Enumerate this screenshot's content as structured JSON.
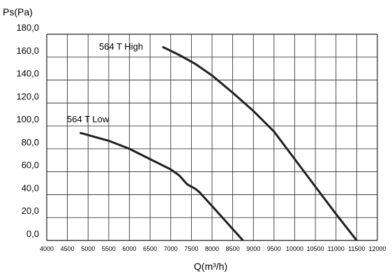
{
  "chart_data": {
    "type": "line",
    "title": "",
    "xlabel": "Q(m³/h)",
    "ylabel": "Ps(Pa)",
    "xlim": [
      4000,
      12000
    ],
    "ylim": [
      0,
      180
    ],
    "grid": true,
    "x_ticks": [
      "4000",
      "4500",
      "5000",
      "5500",
      "6000",
      "6500",
      "7000",
      "7500",
      "8000",
      "8500",
      "9000",
      "9500",
      "10000",
      "10500",
      "11000",
      "11500",
      "12000"
    ],
    "y_ticks": [
      "0,0",
      "20,0",
      "40,0",
      "60,0",
      "80,0",
      "100,0",
      "120,0",
      "140,0",
      "160,0",
      "180,0"
    ],
    "series": [
      {
        "name": "564 T High",
        "color": "#231f20",
        "points": [
          [
            6800,
            169
          ],
          [
            7200,
            162
          ],
          [
            7600,
            154
          ],
          [
            8000,
            144
          ],
          [
            8500,
            129
          ],
          [
            9000,
            113
          ],
          [
            9500,
            95
          ],
          [
            10000,
            71
          ],
          [
            10500,
            47
          ],
          [
            11000,
            23
          ],
          [
            11500,
            0
          ]
        ]
      },
      {
        "name": "564 T Low",
        "color": "#231f20",
        "points": [
          [
            4800,
            94
          ],
          [
            5000,
            92
          ],
          [
            5500,
            87
          ],
          [
            6000,
            80
          ],
          [
            6500,
            71
          ],
          [
            7000,
            62
          ],
          [
            7200,
            57
          ],
          [
            7400,
            49
          ],
          [
            7600,
            45
          ],
          [
            7700,
            42
          ],
          [
            8000,
            30
          ],
          [
            8300,
            18
          ],
          [
            8500,
            10
          ],
          [
            8750,
            0
          ]
        ]
      }
    ]
  }
}
